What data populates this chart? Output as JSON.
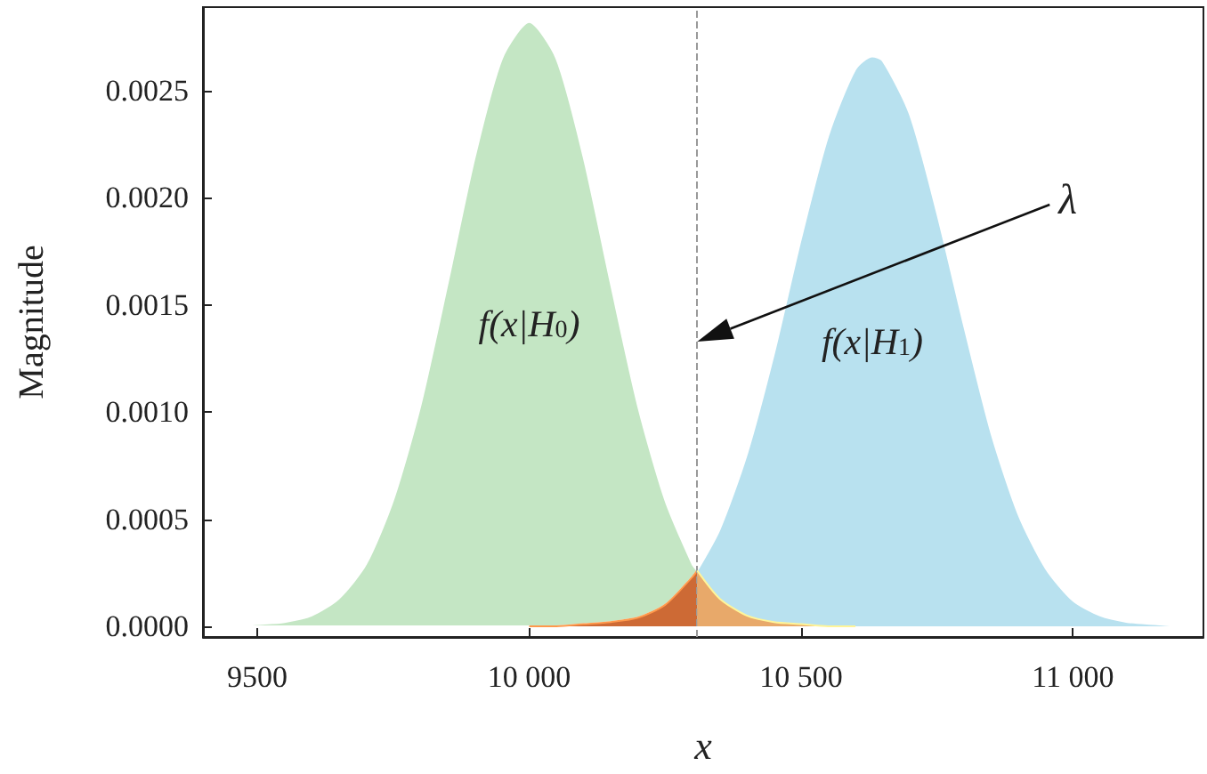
{
  "chart_data": {
    "type": "area",
    "xlabel": "x",
    "ylabel": "Magnitude",
    "x": [
      9450,
      9500,
      9550,
      9600,
      9650,
      9700,
      9750,
      9800,
      9850,
      9900,
      9950,
      10000,
      10050,
      10100,
      10150,
      10200,
      10250,
      10300,
      10309,
      10350,
      10400,
      10450,
      10500,
      10550,
      10600,
      10631,
      10650,
      10700,
      10750,
      10800,
      10850,
      10900,
      10950,
      11000,
      11050,
      11100,
      11150,
      11200
    ],
    "series": [
      {
        "name": "f(x|H$_{0}$)",
        "color": "#c4e6c4",
        "values": [
          0,
          1e-05,
          2e-05,
          5e-05,
          0.00013,
          0.00029,
          0.00059,
          0.00103,
          0.0016,
          0.00219,
          0.00265,
          0.00282,
          0.00265,
          0.00219,
          0.0016,
          0.00103,
          0.00059,
          0.00029,
          0.00026,
          0.00013,
          5e-05,
          2e-05,
          1e-05,
          0,
          0,
          0,
          0,
          0,
          0,
          0,
          0,
          0,
          0,
          0,
          0,
          0,
          0,
          0
        ]
      },
      {
        "name": "f(x|H$_{1}$)",
        "color": "#b8e1ef",
        "values": [
          0,
          0,
          0,
          0,
          0,
          0,
          0,
          0,
          0,
          0,
          0,
          0,
          0,
          1e-05,
          2e-05,
          4e-05,
          0.0001,
          0.00023,
          0.00026,
          0.00045,
          0.0008,
          0.00127,
          0.00181,
          0.00229,
          0.0026,
          0.00266,
          0.00264,
          0.00239,
          0.00193,
          0.0014,
          0.0009,
          0.00052,
          0.00027,
          0.00012,
          5e-05,
          2e-05,
          1e-05,
          0
        ]
      },
      {
        "color": "#cd6a35",
        "x": [
          10000,
          10050,
          10100,
          10150,
          10200,
          10250,
          10300,
          10309
        ],
        "values": [
          0,
          0,
          1e-05,
          2e-05,
          4e-05,
          0.0001,
          0.00023,
          0.00026
        ]
      },
      {
        "color": "#e8a96a",
        "x": [
          10309,
          10350,
          10400,
          10450,
          10500,
          10550,
          10600
        ],
        "values": [
          0.00026,
          0.00013,
          5e-05,
          2e-05,
          1e-05,
          0,
          0
        ]
      }
    ],
    "xlim": [
      9400,
      11240
    ],
    "xticks": [
      9500,
      {
        "value": 10000,
        "label": "10 000"
      },
      {
        "value": 10500,
        "label": "10 500"
      },
      {
        "value": 11000,
        "label": "11 000"
      }
    ],
    "ylim": [
      -5e-05,
      0.00289
    ],
    "yticks": [
      {
        "value": 0,
        "label": "0.0000"
      },
      {
        "value": 0.0005,
        "label": "0.0005"
      },
      {
        "value": 0.001,
        "label": "0.0010"
      },
      {
        "value": 0.0015,
        "label": "0.0015"
      },
      {
        "value": 0.002,
        "label": "0.0020"
      },
      {
        "value": 0.0025,
        "label": "0.0025"
      }
    ],
    "grid": false,
    "ref_lines": [
      {
        "axis": "x",
        "value": 10309,
        "color": "#999999",
        "line_style": "dashed"
      }
    ],
    "annotations": [
      "λ"
    ]
  }
}
